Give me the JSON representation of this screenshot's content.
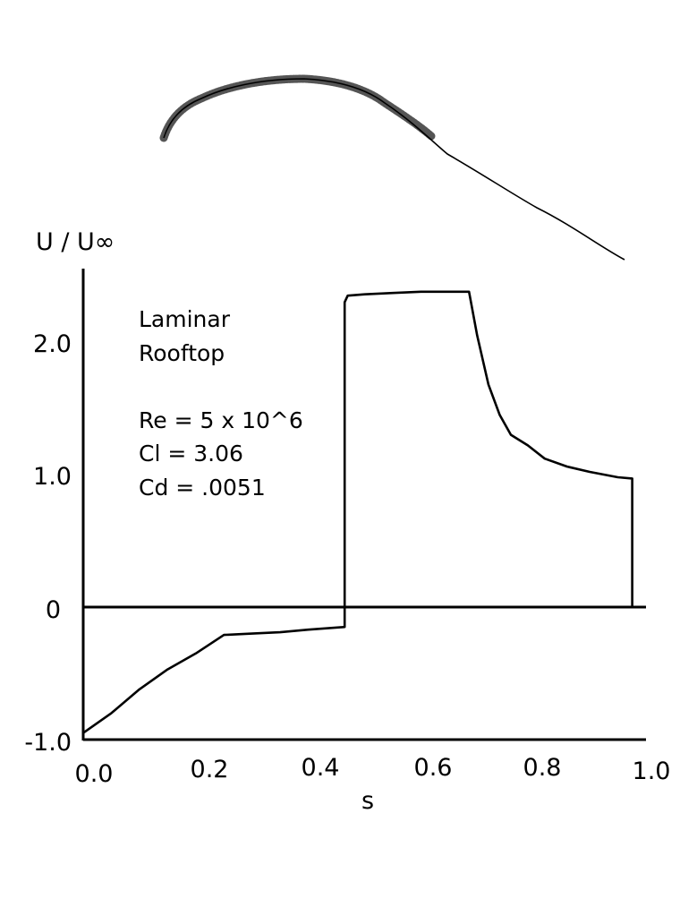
{
  "chart_data": {
    "type": "line",
    "ylabel": "U / U∞",
    "xlabel": "s",
    "xlim": [
      0.0,
      1.0
    ],
    "ylim": [
      -1.0,
      2.4
    ],
    "x_ticks": [
      "0.0",
      "0.2",
      "0.4",
      "0.6",
      "0.8",
      "1.0"
    ],
    "y_ticks": [
      "-1.0",
      "0",
      "1.0",
      "2.0"
    ],
    "annotations": [
      "Laminar",
      "Rooftop",
      "Re = 5 x 10^6",
      "Cl = 3.06",
      "Cd = .0051"
    ],
    "series": [
      {
        "x": [
          0.0,
          0.05,
          0.1,
          0.15,
          0.2,
          0.25,
          0.3,
          0.35,
          0.4,
          0.4645,
          0.4645,
          0.47,
          0.5,
          0.55,
          0.6,
          0.65,
          0.6855,
          0.7,
          0.72,
          0.74,
          0.76,
          0.79,
          0.82,
          0.86,
          0.9,
          0.95,
          0.9755,
          0.9755
        ],
        "y": [
          -0.95,
          -0.8,
          -0.62,
          -0.47,
          -0.35,
          -0.21,
          -0.2,
          -0.19,
          -0.17,
          -0.15,
          2.3,
          2.35,
          2.36,
          2.37,
          2.38,
          2.38,
          2.38,
          2.05,
          1.68,
          1.45,
          1.3,
          1.22,
          1.12,
          1.06,
          1.02,
          0.98,
          0.97,
          0.0
        ]
      }
    ]
  }
}
